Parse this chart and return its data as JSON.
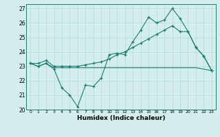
{
  "xlabel": "Humidex (Indice chaleur)",
  "x": [
    0,
    1,
    2,
    3,
    4,
    5,
    6,
    7,
    8,
    9,
    10,
    11,
    12,
    13,
    14,
    15,
    16,
    17,
    18,
    19,
    20,
    21,
    22,
    23
  ],
  "line1_y": [
    23.2,
    23.0,
    23.2,
    22.8,
    21.5,
    21.0,
    20.2,
    21.7,
    21.6,
    22.2,
    23.8,
    23.9,
    23.8,
    24.7,
    25.5,
    26.4,
    26.0,
    26.2,
    27.0,
    26.3,
    25.4,
    24.3,
    23.7,
    22.7
  ],
  "line2_y": [
    23.2,
    23.0,
    23.2,
    22.9,
    22.9,
    22.9,
    22.9,
    22.9,
    22.9,
    22.9,
    22.9,
    22.9,
    22.9,
    22.9,
    22.9,
    22.9,
    22.9,
    22.9,
    22.9,
    22.9,
    22.9,
    22.9,
    22.8,
    22.7
  ],
  "line3_y": [
    23.2,
    23.2,
    23.4,
    23.0,
    23.0,
    23.0,
    23.0,
    23.1,
    23.2,
    23.3,
    23.5,
    23.8,
    24.0,
    24.3,
    24.6,
    24.9,
    25.2,
    25.5,
    25.8,
    25.4,
    25.4,
    24.3,
    23.7,
    22.7
  ],
  "ylim": [
    20,
    27
  ],
  "yticks": [
    20,
    21,
    22,
    23,
    24,
    25,
    26,
    27
  ],
  "bg_color": "#d4eeee",
  "line_color": "#1a7a6e",
  "grid_color": "#b8d8d8"
}
